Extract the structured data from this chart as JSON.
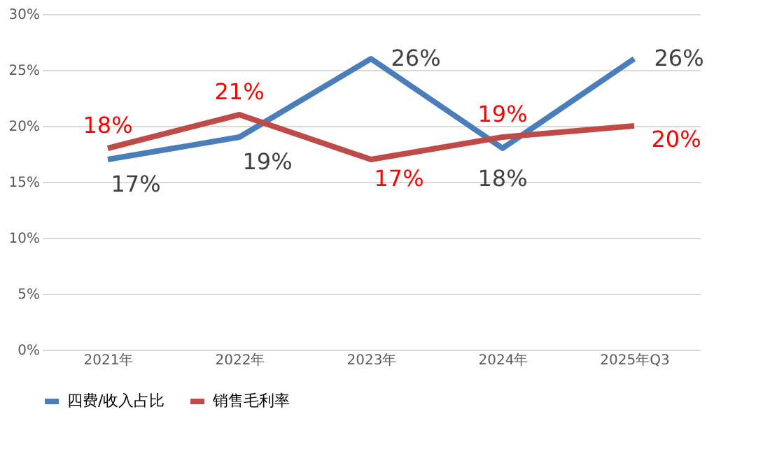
{
  "chart_data": {
    "type": "line",
    "categories": [
      "2021年",
      "2022年",
      "2023年",
      "2024年",
      "2025年Q3"
    ],
    "series": [
      {
        "name": "四费/收入占比",
        "color": "#4a7ebb",
        "values": [
          17,
          19,
          26,
          18,
          26
        ],
        "value_labels": [
          "17%",
          "19%",
          "26%",
          "18%",
          "26%"
        ]
      },
      {
        "name": "销售毛利率",
        "color": "#be4b48",
        "values": [
          18,
          21,
          17,
          19,
          20
        ],
        "value_labels": [
          "18%",
          "21%",
          "17%",
          "19%",
          "20%"
        ]
      }
    ],
    "ylim": [
      0,
      30
    ],
    "yticks": [
      {
        "value": 0,
        "label": "0%"
      },
      {
        "value": 5,
        "label": "5%"
      },
      {
        "value": 10,
        "label": "10%"
      },
      {
        "value": 15,
        "label": "15%"
      },
      {
        "value": 20,
        "label": "20%"
      },
      {
        "value": 25,
        "label": "25%"
      },
      {
        "value": 30,
        "label": "30%"
      }
    ],
    "grid": "y",
    "legend": "bottom",
    "marker": "none",
    "line_style": "solid"
  }
}
